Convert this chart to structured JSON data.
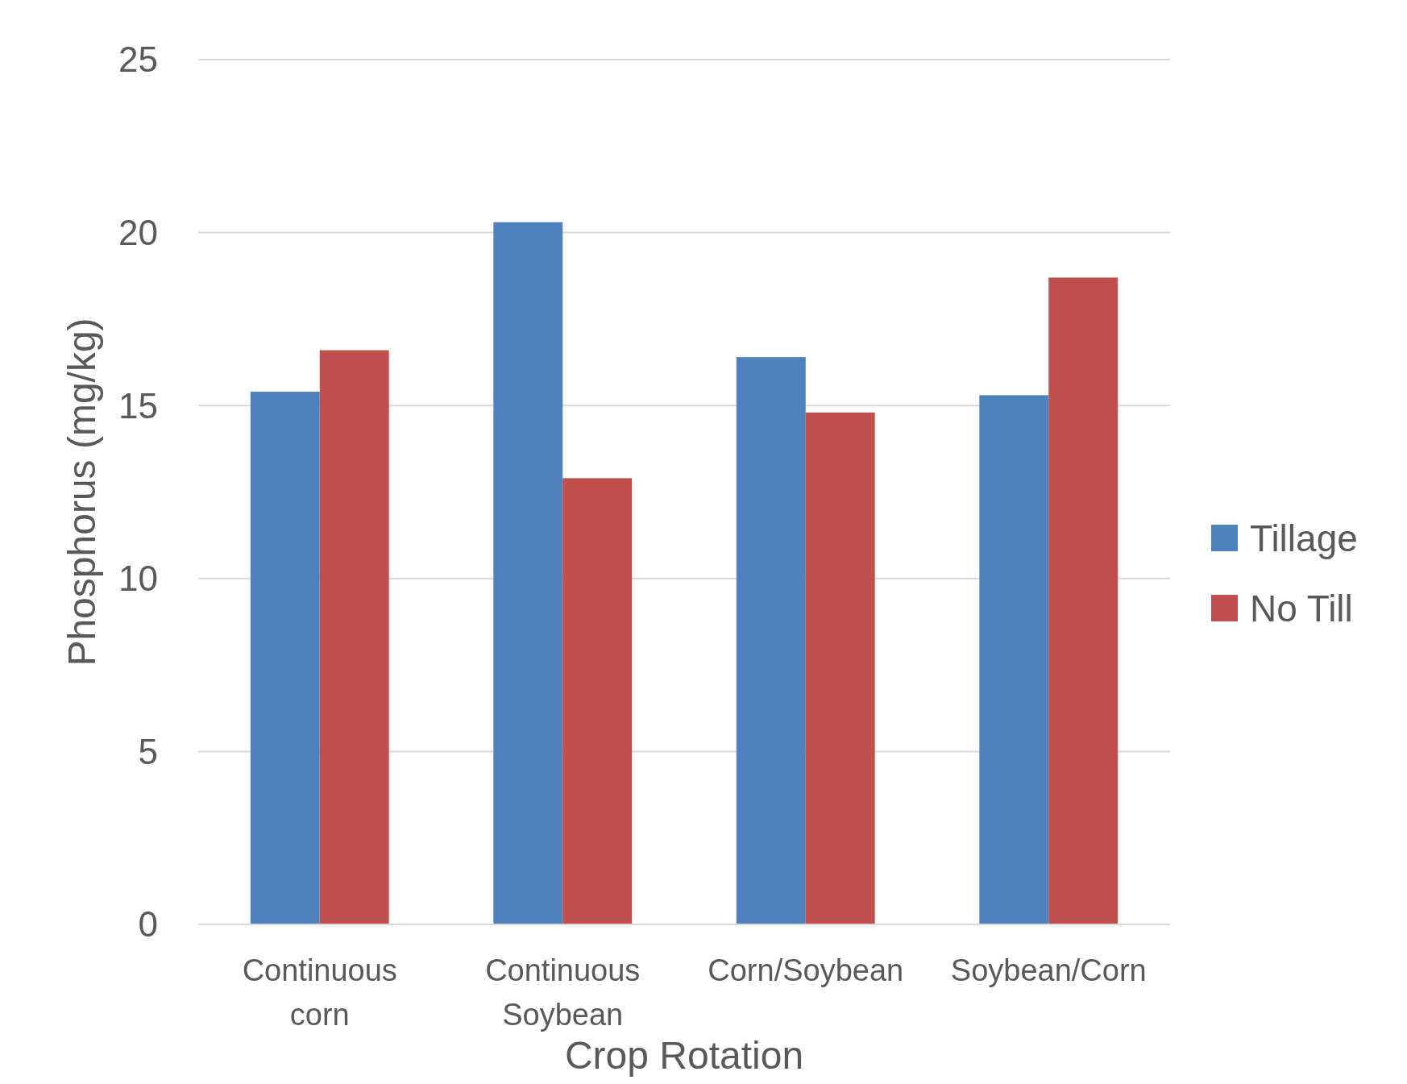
{
  "chart_data": {
    "type": "bar",
    "xlabel": "Crop Rotation",
    "ylabel": "Phosphorus (mg/kg)",
    "categories": [
      "Continuous corn",
      "Continuous Soybean",
      "Corn/Soybean",
      "Soybean/Corn"
    ],
    "series": [
      {
        "name": "Tillage",
        "color": "#4f81bd",
        "values": [
          15.4,
          20.3,
          16.4,
          15.3
        ]
      },
      {
        "name": "No Till",
        "color": "#c0504d",
        "values": [
          16.6,
          12.9,
          14.8,
          18.7
        ]
      }
    ],
    "ylim": [
      0,
      25
    ],
    "yticks": [
      0,
      5,
      10,
      15,
      20,
      25
    ],
    "grid": "y",
    "legend": "right"
  }
}
